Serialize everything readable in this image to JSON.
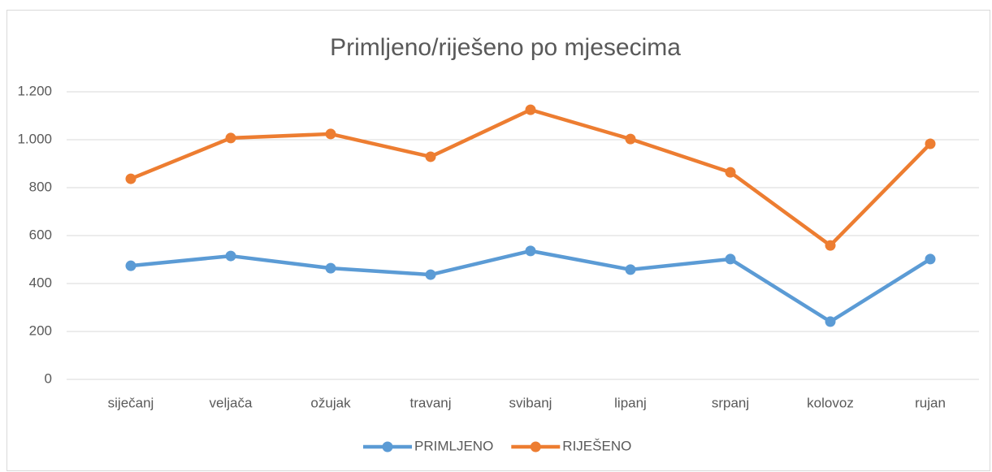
{
  "chart_data": {
    "type": "line",
    "title": "Primljeno/riješeno po mjesecima",
    "categories": [
      "siječanj",
      "veljača",
      "ožujak",
      "travanj",
      "svibanj",
      "lipanj",
      "srpanj",
      "kolovoz",
      "rujan"
    ],
    "series": [
      {
        "name": "PRIMLJENO",
        "color": "#5b9bd5",
        "values": [
          474,
          515,
          464,
          437,
          536,
          458,
          502,
          241,
          502
        ]
      },
      {
        "name": "RIJEŠENO",
        "color": "#ed7d31",
        "values": [
          837,
          1007,
          1024,
          929,
          1125,
          1003,
          864,
          559,
          983
        ]
      }
    ],
    "ylim": [
      0,
      1200
    ],
    "yticks": [
      0,
      200,
      400,
      600,
      800,
      {
        "value": 1000,
        "label": "1.000"
      },
      {
        "value": 1200,
        "label": "1.200"
      }
    ],
    "grid": true,
    "legend": "bottom"
  }
}
